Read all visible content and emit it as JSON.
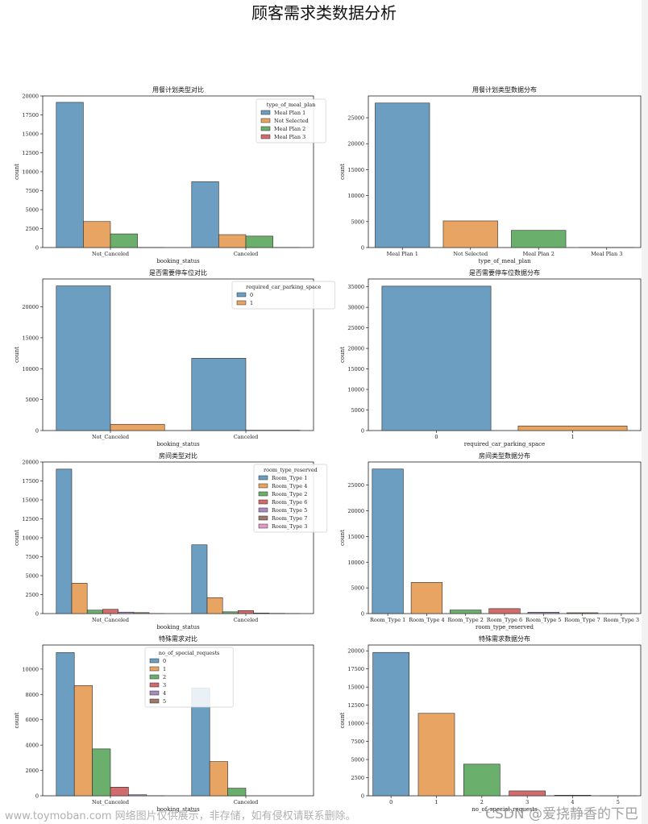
{
  "page_title": "顾客需求类数据分析",
  "watermark_left": "www.toymoban.com 网络图片仅供展示，非存储，如有侵权请联系删除。",
  "watermark_right": "CSDN @爱挠静香的下巴",
  "colors": [
    "#6b9ec1",
    "#e8a463",
    "#6ab06c",
    "#d26b6b",
    "#a98bc2",
    "#9f7a6a",
    "#e49ac9"
  ],
  "chart_data": [
    {
      "type": "bar",
      "title": "用餐计划类型对比",
      "xlabel": "booking_status",
      "ylabel": "count",
      "categories": [
        "Not_Canceled",
        "Canceled"
      ],
      "legend_title": "type_of_meal_plan",
      "legend_position": "top-right",
      "series": [
        {
          "name": "Meal Plan 1",
          "values": [
            19156,
            8679
          ]
        },
        {
          "name": "Not Selected",
          "values": [
            3431,
            1699
          ]
        },
        {
          "name": "Meal Plan 2",
          "values": [
            1799,
            1506
          ]
        },
        {
          "name": "Meal Plan 3",
          "values": [
            4,
            1
          ]
        }
      ],
      "ylim": [
        0,
        20000
      ],
      "yticks": [
        0,
        2500,
        5000,
        7500,
        10000,
        12500,
        15000,
        17500,
        20000
      ]
    },
    {
      "type": "bar",
      "title": "用餐计划类型数据分布",
      "xlabel": "type_of_meal_plan",
      "ylabel": "count",
      "categories": [
        "Meal Plan 1",
        "Not Selected",
        "Meal Plan 2",
        "Meal Plan 3"
      ],
      "values": [
        27835,
        5130,
        3305,
        5
      ],
      "ylim": [
        0,
        29200
      ],
      "yticks": [
        0,
        5000,
        10000,
        15000,
        20000,
        25000
      ]
    },
    {
      "type": "bar",
      "title": "是否需要停车位对比",
      "xlabel": "booking_status",
      "ylabel": "count",
      "categories": [
        "Not_Canceled",
        "Canceled"
      ],
      "legend_title": "required_car_parking_space",
      "legend_position": "top-right",
      "series": [
        {
          "name": "0",
          "values": [
            23380,
            11680
          ]
        },
        {
          "name": "1",
          "values": [
            1010,
            50
          ]
        }
      ],
      "ylim": [
        0,
        24500
      ],
      "yticks": [
        0,
        5000,
        10000,
        15000,
        20000
      ]
    },
    {
      "type": "bar",
      "title": "是否需要停车位数据分布",
      "xlabel": "required_car_parking_space",
      "ylabel": "count",
      "categories": [
        "0",
        "1"
      ],
      "values": [
        35151,
        1124
      ],
      "ylim": [
        0,
        36900
      ],
      "yticks": [
        0,
        5000,
        10000,
        15000,
        20000,
        25000,
        30000,
        35000
      ]
    },
    {
      "type": "bar",
      "title": "房间类型对比",
      "xlabel": "booking_status",
      "ylabel": "count",
      "categories": [
        "Not_Canceled",
        "Canceled"
      ],
      "legend_title": "room_type_reserved",
      "legend_position": "top-right",
      "series": [
        {
          "name": "Room_Type 1",
          "values": [
            19058,
            9072
          ]
        },
        {
          "name": "Room_Type 4",
          "values": [
            4000,
            2100
          ]
        },
        {
          "name": "Room_Type 2",
          "values": [
            450,
            230
          ]
        },
        {
          "name": "Room_Type 6",
          "values": [
            560,
            400
          ]
        },
        {
          "name": "Room_Type 5",
          "values": [
            190,
            70
          ]
        },
        {
          "name": "Room_Type 7",
          "values": [
            130,
            30
          ]
        },
        {
          "name": "Room_Type 3",
          "values": [
            5,
            2
          ]
        }
      ],
      "ylim": [
        0,
        20000
      ],
      "yticks": [
        0,
        2500,
        5000,
        7500,
        10000,
        12500,
        15000,
        17500,
        20000
      ]
    },
    {
      "type": "bar",
      "title": "房间类型数据分布",
      "xlabel": "room_type_reserved",
      "ylabel": "count",
      "categories": [
        "Room_Type 1",
        "Room_Type 4",
        "Room_Type 2",
        "Room_Type 6",
        "Room_Type 5",
        "Room_Type 7",
        "Room_Type 3"
      ],
      "values": [
        28130,
        6057,
        692,
        966,
        265,
        158,
        7
      ],
      "ylim": [
        0,
        29500
      ],
      "yticks": [
        0,
        5000,
        10000,
        15000,
        20000,
        25000
      ]
    },
    {
      "type": "bar",
      "title": "特殊需求对比",
      "xlabel": "booking_status",
      "ylabel": "count",
      "categories": [
        "Not_Canceled",
        "Canceled"
      ],
      "legend_title": "no_of_special_requests",
      "legend_position": "top-center",
      "series": [
        {
          "name": "0",
          "values": [
            11300,
            8500
          ]
        },
        {
          "name": "1",
          "values": [
            8700,
            2700
          ]
        },
        {
          "name": "2",
          "values": [
            3700,
            600
          ]
        },
        {
          "name": "3",
          "values": [
            680,
            0
          ]
        },
        {
          "name": "4",
          "values": [
            80,
            0
          ]
        },
        {
          "name": "5",
          "values": [
            8,
            0
          ]
        }
      ],
      "ylim": [
        0,
        11900
      ],
      "yticks": [
        0,
        2000,
        4000,
        6000,
        8000,
        10000
      ]
    },
    {
      "type": "bar",
      "title": "特殊需求数据分布",
      "xlabel": "no_of_special_requests",
      "ylabel": "count",
      "categories": [
        "0",
        "1",
        "2",
        "3",
        "4",
        "5"
      ],
      "values": [
        19777,
        11373,
        4364,
        675,
        78,
        8
      ],
      "ylim": [
        0,
        20800
      ],
      "yticks": [
        0,
        2500,
        5000,
        7500,
        10000,
        12500,
        15000,
        17500,
        20000
      ]
    }
  ]
}
